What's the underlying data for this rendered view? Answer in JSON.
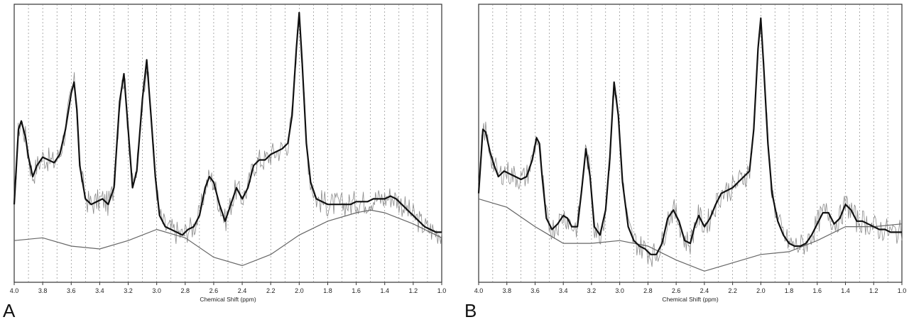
{
  "chart_data": [
    {
      "type": "line",
      "panel_label": "A",
      "xlabel": "Chemical Shift (ppm)",
      "xlim": [
        4.0,
        1.0
      ],
      "x_reversed": true,
      "x_ticks": [
        "4.0",
        "3.8",
        "3.6",
        "3.4",
        "3.2",
        "3.0",
        "2.8",
        "2.6",
        "2.4",
        "2.2",
        "2.0",
        "1.8",
        "1.6",
        "1.4",
        "1.2",
        "1.0"
      ],
      "grid": "vertical dashed",
      "series": [
        {
          "role": "fit",
          "x": [
            4.0,
            3.97,
            3.95,
            3.92,
            3.9,
            3.87,
            3.84,
            3.8,
            3.76,
            3.72,
            3.68,
            3.64,
            3.6,
            3.58,
            3.56,
            3.54,
            3.5,
            3.46,
            3.42,
            3.38,
            3.34,
            3.3,
            3.26,
            3.23,
            3.2,
            3.17,
            3.14,
            3.1,
            3.07,
            3.04,
            3.01,
            2.98,
            2.94,
            2.9,
            2.86,
            2.82,
            2.78,
            2.74,
            2.7,
            2.66,
            2.63,
            2.6,
            2.56,
            2.52,
            2.48,
            2.44,
            2.4,
            2.36,
            2.32,
            2.28,
            2.24,
            2.2,
            2.16,
            2.12,
            2.08,
            2.05,
            2.02,
            2.0,
            1.98,
            1.95,
            1.92,
            1.88,
            1.84,
            1.8,
            1.76,
            1.72,
            1.68,
            1.64,
            1.6,
            1.56,
            1.52,
            1.48,
            1.44,
            1.4,
            1.36,
            1.32,
            1.28,
            1.24,
            1.2,
            1.16,
            1.12,
            1.08,
            1.04,
            1.0
          ],
          "y": [
            0.28,
            0.55,
            0.58,
            0.52,
            0.45,
            0.38,
            0.42,
            0.45,
            0.44,
            0.43,
            0.46,
            0.55,
            0.68,
            0.72,
            0.62,
            0.42,
            0.3,
            0.28,
            0.29,
            0.3,
            0.28,
            0.34,
            0.65,
            0.75,
            0.55,
            0.34,
            0.4,
            0.66,
            0.8,
            0.6,
            0.38,
            0.24,
            0.2,
            0.19,
            0.18,
            0.17,
            0.19,
            0.2,
            0.24,
            0.34,
            0.38,
            0.36,
            0.28,
            0.22,
            0.28,
            0.34,
            0.3,
            0.34,
            0.42,
            0.44,
            0.44,
            0.46,
            0.47,
            0.48,
            0.5,
            0.6,
            0.84,
            0.97,
            0.8,
            0.5,
            0.36,
            0.3,
            0.29,
            0.28,
            0.28,
            0.28,
            0.28,
            0.28,
            0.29,
            0.29,
            0.29,
            0.3,
            0.3,
            0.3,
            0.31,
            0.3,
            0.28,
            0.26,
            0.24,
            0.22,
            0.2,
            0.19,
            0.18,
            0.18
          ]
        },
        {
          "role": "baseline",
          "x": [
            4.0,
            3.8,
            3.6,
            3.4,
            3.2,
            3.0,
            2.8,
            2.6,
            2.4,
            2.2,
            2.0,
            1.8,
            1.6,
            1.5,
            1.4,
            1.2,
            1.0
          ],
          "y": [
            0.15,
            0.16,
            0.13,
            0.12,
            0.15,
            0.19,
            0.16,
            0.09,
            0.06,
            0.1,
            0.17,
            0.22,
            0.25,
            0.26,
            0.25,
            0.21,
            0.16
          ]
        }
      ]
    },
    {
      "type": "line",
      "panel_label": "B",
      "xlabel": "Chemical Shift (ppm)",
      "xlim": [
        4.0,
        1.0
      ],
      "x_reversed": true,
      "x_ticks": [
        "4.0",
        "3.8",
        "3.6",
        "3.4",
        "3.2",
        "3.0",
        "2.8",
        "2.6",
        "2.4",
        "2.2",
        "2.0",
        "1.8",
        "1.6",
        "1.4",
        "1.2",
        "1.0"
      ],
      "grid": "vertical dashed",
      "series": [
        {
          "role": "fit",
          "x": [
            4.0,
            3.97,
            3.95,
            3.92,
            3.89,
            3.86,
            3.82,
            3.78,
            3.74,
            3.7,
            3.66,
            3.62,
            3.59,
            3.57,
            3.55,
            3.52,
            3.48,
            3.44,
            3.4,
            3.37,
            3.34,
            3.3,
            3.27,
            3.24,
            3.21,
            3.18,
            3.14,
            3.1,
            3.07,
            3.04,
            3.01,
            2.98,
            2.94,
            2.9,
            2.86,
            2.82,
            2.78,
            2.74,
            2.7,
            2.66,
            2.62,
            2.58,
            2.54,
            2.5,
            2.47,
            2.44,
            2.4,
            2.36,
            2.32,
            2.28,
            2.24,
            2.2,
            2.16,
            2.12,
            2.08,
            2.05,
            2.02,
            2.0,
            1.98,
            1.95,
            1.92,
            1.88,
            1.84,
            1.8,
            1.76,
            1.72,
            1.68,
            1.64,
            1.6,
            1.56,
            1.52,
            1.48,
            1.44,
            1.4,
            1.36,
            1.32,
            1.28,
            1.24,
            1.2,
            1.16,
            1.12,
            1.08,
            1.04,
            1.0
          ],
          "y": [
            0.32,
            0.55,
            0.54,
            0.47,
            0.42,
            0.38,
            0.4,
            0.39,
            0.38,
            0.37,
            0.38,
            0.44,
            0.52,
            0.5,
            0.38,
            0.23,
            0.19,
            0.21,
            0.24,
            0.23,
            0.2,
            0.2,
            0.33,
            0.48,
            0.38,
            0.2,
            0.17,
            0.26,
            0.45,
            0.72,
            0.6,
            0.36,
            0.2,
            0.15,
            0.13,
            0.12,
            0.1,
            0.1,
            0.14,
            0.23,
            0.26,
            0.22,
            0.15,
            0.14,
            0.2,
            0.24,
            0.2,
            0.23,
            0.28,
            0.32,
            0.33,
            0.34,
            0.36,
            0.38,
            0.4,
            0.55,
            0.84,
            0.95,
            0.78,
            0.5,
            0.32,
            0.22,
            0.17,
            0.14,
            0.13,
            0.13,
            0.14,
            0.17,
            0.21,
            0.25,
            0.25,
            0.21,
            0.23,
            0.28,
            0.26,
            0.22,
            0.22,
            0.21,
            0.2,
            0.19,
            0.19,
            0.18,
            0.18,
            0.18
          ]
        },
        {
          "role": "baseline",
          "x": [
            4.0,
            3.8,
            3.6,
            3.4,
            3.2,
            3.0,
            2.8,
            2.6,
            2.4,
            2.2,
            2.0,
            1.8,
            1.6,
            1.4,
            1.2,
            1.0
          ],
          "y": [
            0.3,
            0.27,
            0.2,
            0.14,
            0.14,
            0.15,
            0.13,
            0.08,
            0.04,
            0.07,
            0.1,
            0.11,
            0.15,
            0.2,
            0.2,
            0.21
          ]
        }
      ]
    }
  ]
}
